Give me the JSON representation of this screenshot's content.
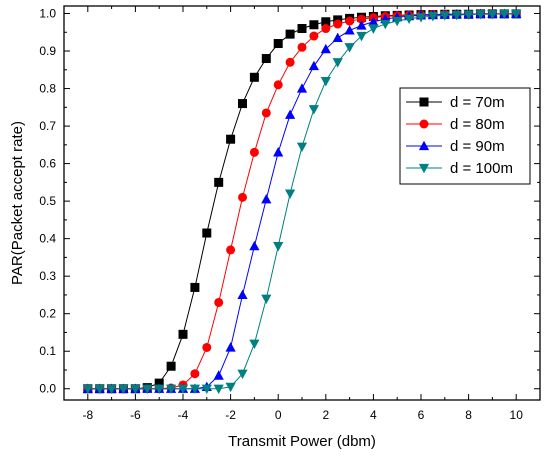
{
  "chart_data": {
    "type": "line",
    "xlabel": "Transmit Power (dbm)",
    "ylabel": "PAR(Packet accept rate)",
    "xlim": [
      -9,
      11
    ],
    "ylim": [
      -0.03,
      1.02
    ],
    "xticks": [
      -8,
      -6,
      -4,
      -2,
      0,
      2,
      4,
      6,
      8,
      10
    ],
    "yticks": [
      0.0,
      0.1,
      0.2,
      0.3,
      0.4,
      0.5,
      0.6,
      0.7,
      0.8,
      0.9,
      1.0
    ],
    "ytick_labels": [
      "0.0",
      "0.1",
      "0.2",
      "0.3",
      "0.4",
      "0.5",
      "0.6",
      "0.7",
      "0.8",
      "0.9",
      "1.0"
    ],
    "grid": false,
    "legend_position": "right-middle",
    "x": [
      -8,
      -7.5,
      -7,
      -6.5,
      -6,
      -5.5,
      -5,
      -4.5,
      -4,
      -3.5,
      -3,
      -2.5,
      -2,
      -1.5,
      -1,
      -0.5,
      0,
      0.5,
      1,
      1.5,
      2,
      2.5,
      3,
      3.5,
      4,
      4.5,
      5,
      5.5,
      6,
      6.5,
      7,
      7.5,
      8,
      8.5,
      9,
      9.5,
      10
    ],
    "series": [
      {
        "name": "d = 70m",
        "color": "#000000",
        "marker": "square",
        "values": [
          0,
          0,
          0,
          0,
          0,
          0.003,
          0.015,
          0.06,
          0.145,
          0.27,
          0.415,
          0.55,
          0.665,
          0.76,
          0.83,
          0.88,
          0.92,
          0.945,
          0.96,
          0.97,
          0.978,
          0.983,
          0.987,
          0.99,
          0.992,
          0.994,
          0.995,
          0.996,
          0.997,
          0.997,
          0.998,
          0.998,
          0.998,
          0.999,
          0.999,
          0.999,
          0.999
        ]
      },
      {
        "name": "d = 80m",
        "color": "#ff0000",
        "marker": "circle",
        "values": [
          0,
          0,
          0,
          0,
          0,
          0,
          0,
          0.002,
          0.01,
          0.04,
          0.11,
          0.23,
          0.37,
          0.51,
          0.63,
          0.735,
          0.81,
          0.87,
          0.91,
          0.94,
          0.96,
          0.972,
          0.98,
          0.985,
          0.989,
          0.992,
          0.994,
          0.995,
          0.996,
          0.997,
          0.998,
          0.998,
          0.998,
          0.999,
          0.999,
          0.999,
          0.999
        ]
      },
      {
        "name": "d = 90m",
        "color": "#0000ff",
        "marker": "triangle-up",
        "values": [
          0,
          0,
          0,
          0,
          0,
          0,
          0,
          0,
          0,
          0,
          0.005,
          0.035,
          0.11,
          0.25,
          0.38,
          0.505,
          0.63,
          0.73,
          0.8,
          0.86,
          0.905,
          0.935,
          0.955,
          0.968,
          0.978,
          0.985,
          0.99,
          0.993,
          0.995,
          0.996,
          0.997,
          0.998,
          0.998,
          0.999,
          0.999,
          0.999,
          0.999
        ]
      },
      {
        "name": "d = 100m",
        "color": "#008080",
        "marker": "triangle-down",
        "values": [
          0,
          0,
          0,
          0,
          0,
          0,
          0,
          0,
          0,
          0,
          0,
          0,
          0.005,
          0.04,
          0.12,
          0.24,
          0.38,
          0.52,
          0.645,
          0.745,
          0.82,
          0.87,
          0.91,
          0.94,
          0.96,
          0.972,
          0.98,
          0.986,
          0.99,
          0.993,
          0.995,
          0.996,
          0.997,
          0.998,
          0.998,
          0.999,
          0.999
        ]
      }
    ]
  }
}
